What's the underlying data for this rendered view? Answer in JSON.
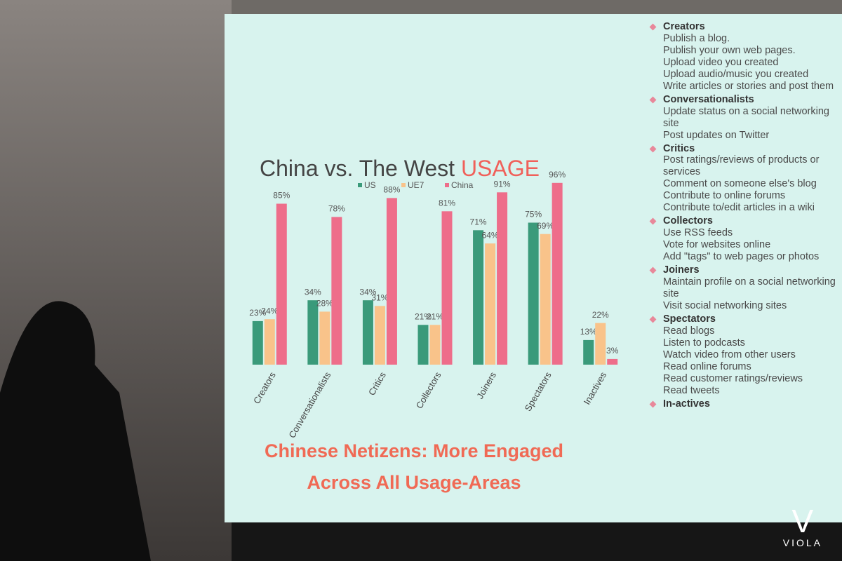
{
  "chart_data": {
    "type": "bar",
    "title": "China vs. The West",
    "title_accent": "USAGE",
    "categories": [
      "Creators",
      "Conversationalists",
      "Critics",
      "Collectors",
      "Joiners",
      "Spectators",
      "Inactives"
    ],
    "series": [
      {
        "name": "US",
        "color": "#3a9a7a",
        "values": [
          23,
          34,
          34,
          21,
          71,
          75,
          13
        ],
        "value_labels": [
          "23%",
          "34%",
          "34%",
          "21%",
          "71%",
          "75%",
          "13%"
        ]
      },
      {
        "name": "UE7",
        "color": "#f9c38a",
        "values": [
          24,
          28,
          31,
          21,
          64,
          69,
          22
        ],
        "value_labels": [
          "24%",
          "28%",
          "31%",
          "21%",
          "64%",
          "69%",
          "22%"
        ]
      },
      {
        "name": "China",
        "color": "#ee6d8a",
        "values": [
          85,
          78,
          88,
          81,
          91,
          96,
          3
        ],
        "value_labels": [
          "85%",
          "78%",
          "88%",
          "81%",
          "91%",
          "96%",
          "3%"
        ]
      }
    ],
    "ylim": [
      0,
      100
    ]
  },
  "caption": [
    "Chinese Netizens:  More Engaged",
    "Across All Usage-Areas"
  ],
  "sections": [
    {
      "heading": "Creators",
      "items": [
        "Publish a blog.",
        "Publish your own web pages.",
        "Upload video you created",
        "Upload audio/music you created",
        "Write articles or stories and post them"
      ]
    },
    {
      "heading": "Conversationalists",
      "items": [
        "Update status on a social networking site",
        "Post updates on Twitter"
      ]
    },
    {
      "heading": "Critics",
      "items": [
        "Post ratings/reviews of products or services",
        "Comment on someone else's blog",
        "Contribute to online forums",
        "Contribute to/edit articles in a wiki"
      ]
    },
    {
      "heading": "Collectors",
      "items": [
        "Use RSS feeds",
        "Vote for websites online",
        "Add \"tags\" to web pages or photos"
      ]
    },
    {
      "heading": "Joiners",
      "items": [
        "Maintain profile on a social networking site",
        "Visit social networking sites"
      ]
    },
    {
      "heading": "Spectators",
      "items": [
        "Read blogs",
        "Listen to podcasts",
        "Watch video from other users",
        "Read online forums",
        "Read customer ratings/reviews",
        "Read tweets"
      ]
    },
    {
      "heading": "In-actives",
      "items": []
    }
  ],
  "logo": "VIOLA"
}
